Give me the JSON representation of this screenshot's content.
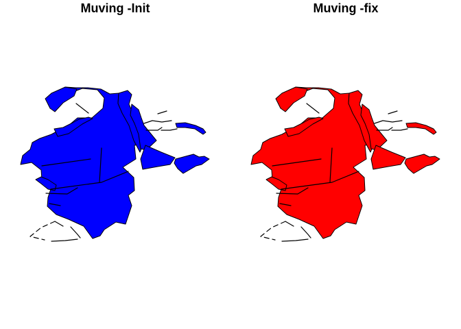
{
  "panels": [
    {
      "title": "Muving -Init",
      "fill": "#0000ff"
    },
    {
      "title": "Muving -fix",
      "fill": "#ff0000"
    }
  ],
  "outline_color": "#000000"
}
